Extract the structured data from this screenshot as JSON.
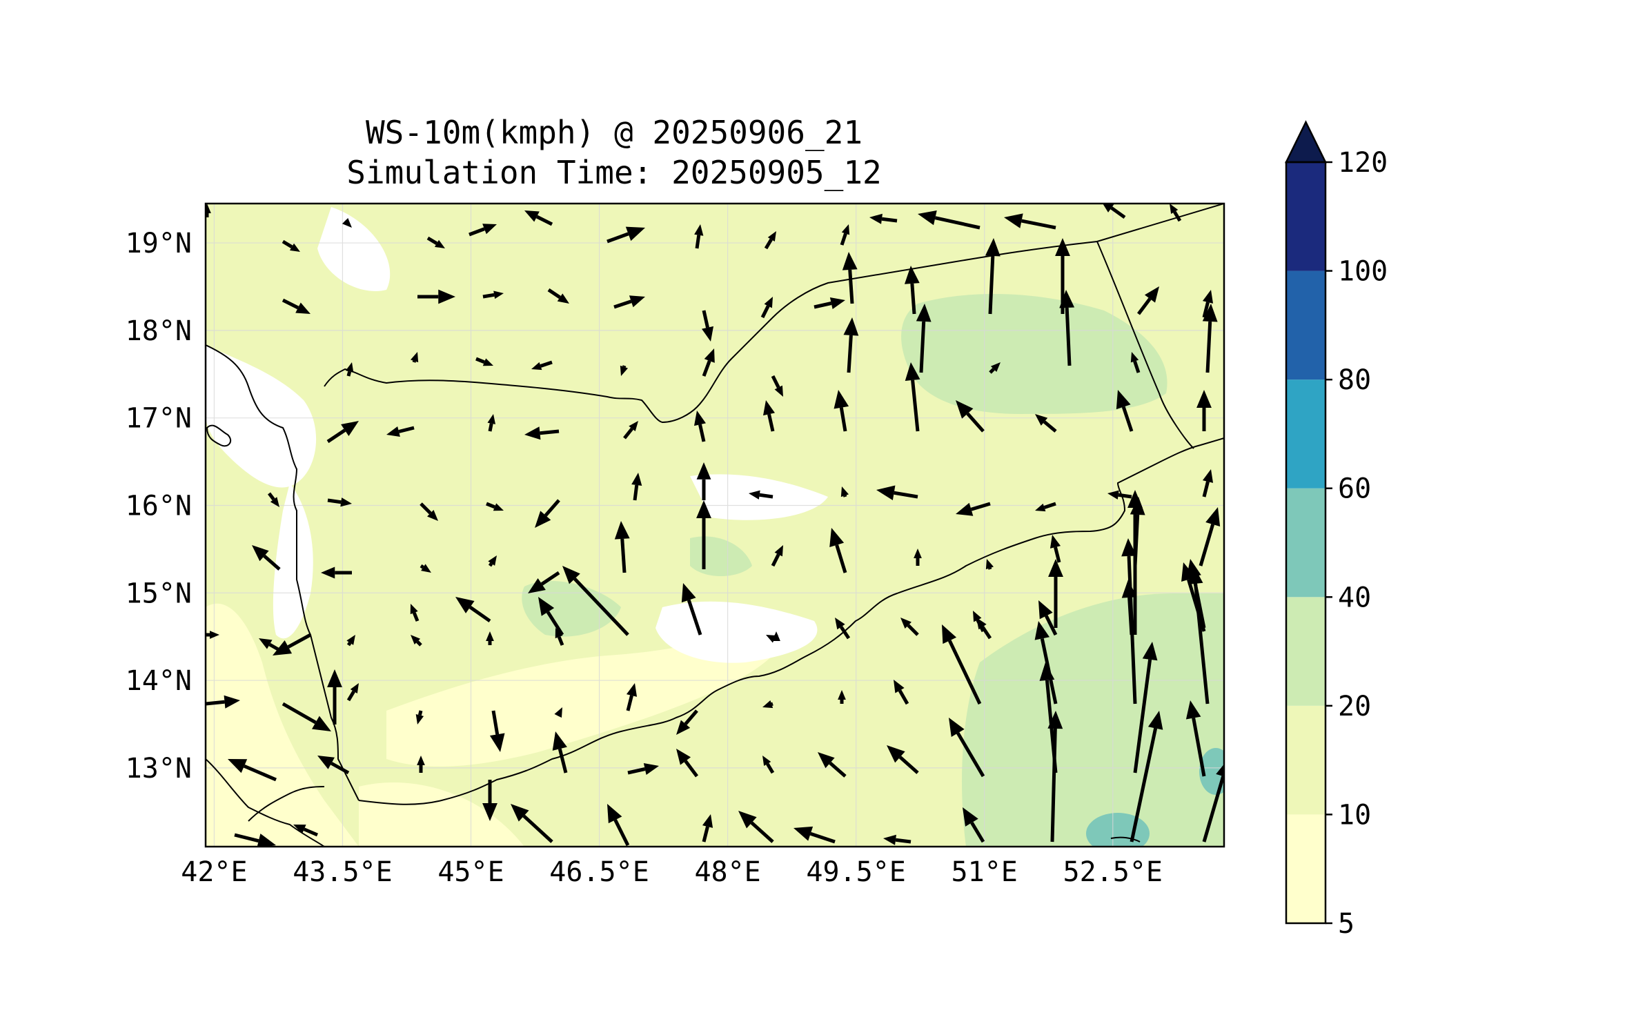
{
  "title": "WS-10m(kmph) @ 20250906_21",
  "subtitle": "Simulation Time: 20250905_12",
  "map": {
    "lon_range": [
      41.9,
      53.8
    ],
    "lat_range": [
      12.1,
      19.45
    ],
    "x_tick_labels": [
      "42°E",
      "43.5°E",
      "45°E",
      "46.5°E",
      "48°E",
      "49.5°E",
      "51°E",
      "52.5°E"
    ],
    "x_tick_values": [
      42,
      43.5,
      45,
      46.5,
      48,
      49.5,
      51,
      52.5
    ],
    "y_tick_labels": [
      "19°N",
      "18°N",
      "17°N",
      "16°N",
      "15°N",
      "14°N",
      "13°N"
    ],
    "y_tick_values": [
      19,
      18,
      17,
      16,
      15,
      14,
      13
    ],
    "gridlines": true,
    "background_level_color": "#eef7b8"
  },
  "colorbar": {
    "levels": [
      "5",
      "10",
      "20",
      "40",
      "60",
      "80",
      "100",
      "120"
    ],
    "colors": [
      "#ffffcc",
      "#eef7b8",
      "#cdebb3",
      "#7ec8b9",
      "#2fa4c4",
      "#2262aa",
      "#1b2a7d"
    ],
    "extend_color": "#0d1b4d",
    "extend": "max",
    "unit": "kmph"
  },
  "wind_field_note_icon": "wind-vector-arrow-icon"
}
